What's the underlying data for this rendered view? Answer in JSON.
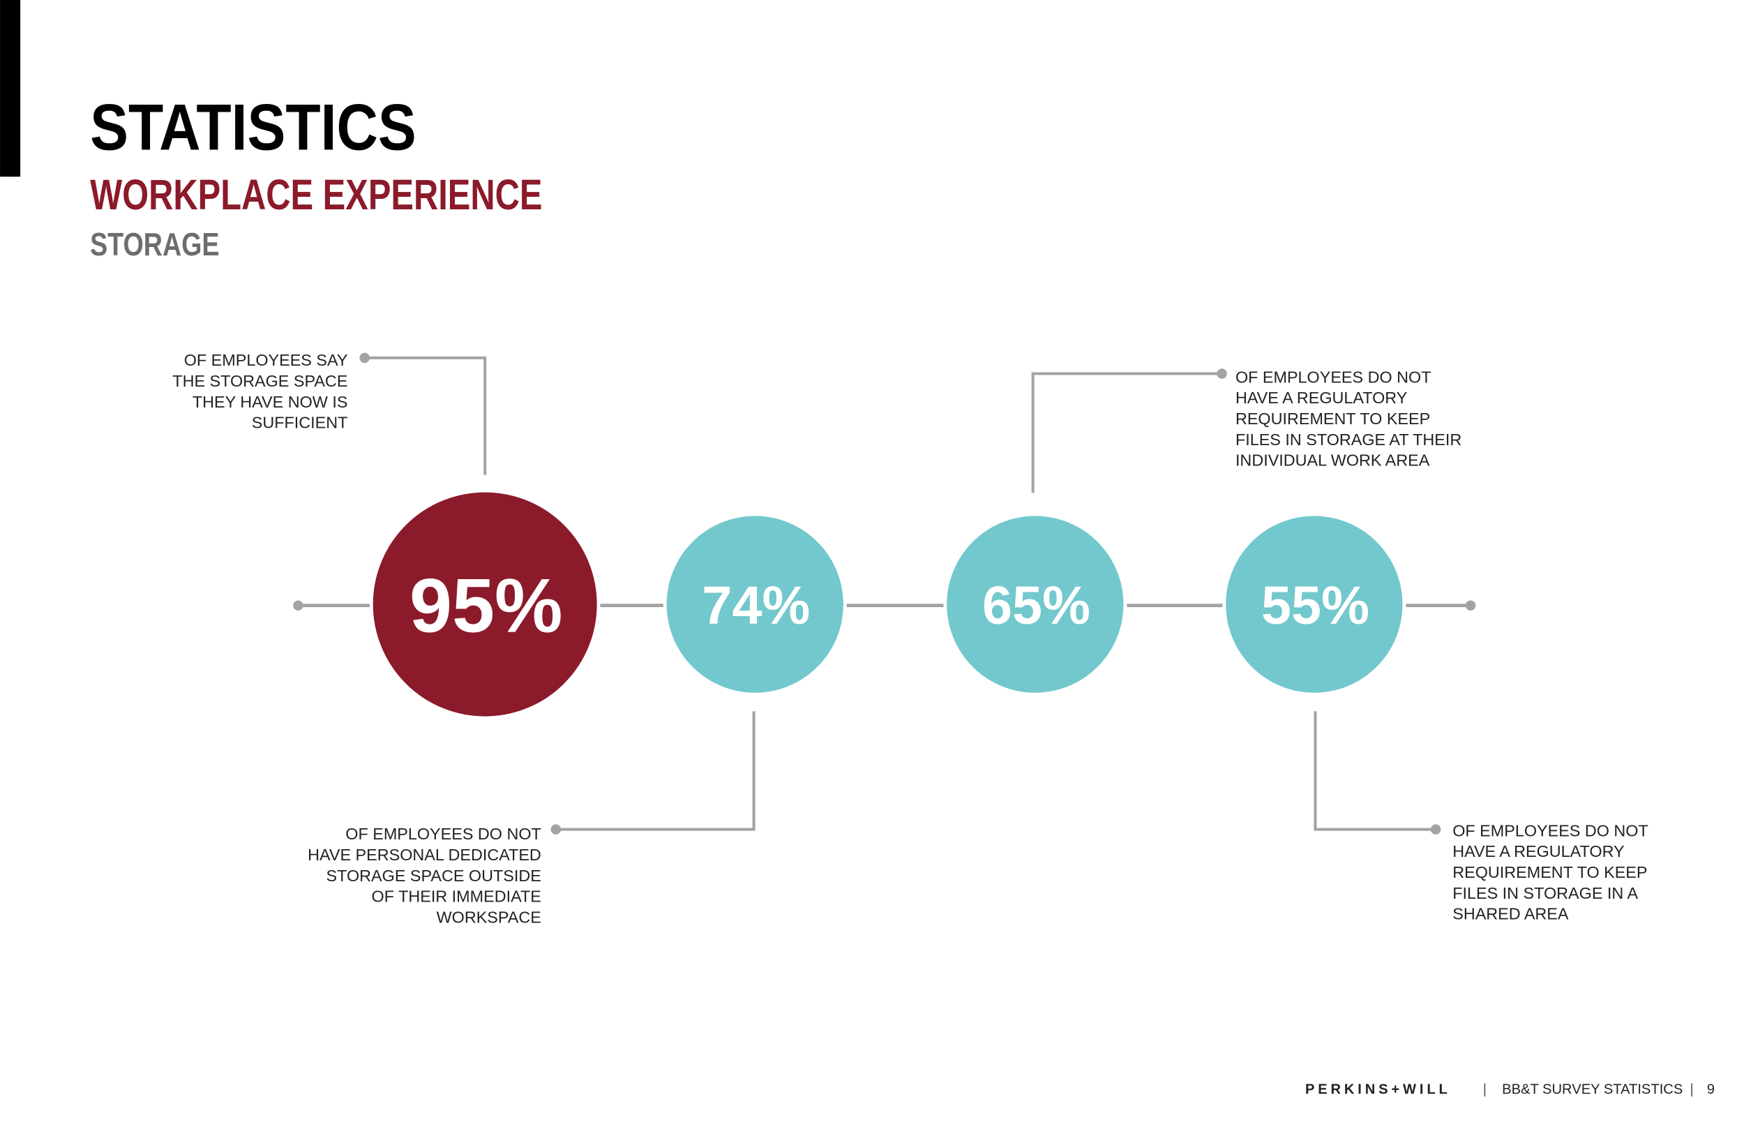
{
  "header": {
    "title": "STATISTICS",
    "subtitle": "WORKPLACE EXPERIENCE",
    "section": "STORAGE"
  },
  "stats": [
    {
      "value": "95%",
      "text": [
        "OF EMPLOYEES SAY",
        "THE STORAGE SPACE",
        "THEY HAVE NOW IS",
        "SUFFICIENT"
      ]
    },
    {
      "value": "74%",
      "text": [
        "OF EMPLOYEES DO NOT",
        "HAVE PERSONAL DEDICATED",
        "STORAGE SPACE OUTSIDE",
        "OF THEIR IMMEDIATE",
        "WORKSPACE"
      ]
    },
    {
      "value": "65%",
      "text": [
        "OF EMPLOYEES DO NOT",
        "HAVE A REGULATORY",
        "REQUIREMENT TO KEEP",
        "FILES IN STORAGE AT THEIR",
        "INDIVIDUAL WORK AREA"
      ]
    },
    {
      "value": "55%",
      "text": [
        "OF EMPLOYEES DO NOT",
        "HAVE A REGULATORY",
        "REQUIREMENT TO KEEP",
        "FILES IN STORAGE IN A",
        "SHARED AREA"
      ]
    }
  ],
  "footer": {
    "brand": "PERKINS+WILL",
    "report": "BB&T SURVEY STATISTICS",
    "page": "9"
  }
}
